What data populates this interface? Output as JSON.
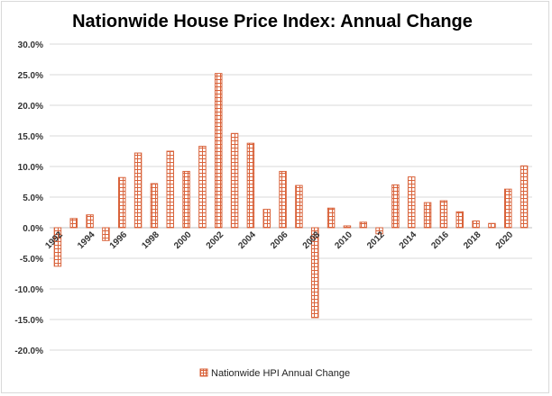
{
  "chart_data": {
    "type": "bar",
    "title": "Nationwide House Price Index: Annual Change",
    "xlabel": "",
    "ylabel": "",
    "ylim": [
      -20,
      30
    ],
    "yticks": [
      "30.0%",
      "25.0%",
      "20.0%",
      "15.0%",
      "10.0%",
      "5.0%",
      "0.0%",
      "-5.0%",
      "-10.0%",
      "-15.0%",
      "-20.0%"
    ],
    "ytick_values": [
      30,
      25,
      20,
      15,
      10,
      5,
      0,
      -5,
      -10,
      -15,
      -20
    ],
    "categories": [
      "1992",
      "1993",
      "1994",
      "1995",
      "1996",
      "1997",
      "1998",
      "1999",
      "2000",
      "2001",
      "2002",
      "2003",
      "2004",
      "2005",
      "2006",
      "2007",
      "2008",
      "2009",
      "2010",
      "2011",
      "2012",
      "2013",
      "2014",
      "2015",
      "2016",
      "2017",
      "2018",
      "2019",
      "2020",
      "2021"
    ],
    "xtick_labels": [
      "1992",
      "",
      "1994",
      "",
      "1996",
      "",
      "1998",
      "",
      "2000",
      "",
      "2002",
      "",
      "2004",
      "",
      "2006",
      "",
      "2008",
      "",
      "2010",
      "",
      "2012",
      "",
      "2014",
      "",
      "2016",
      "",
      "2018",
      "",
      "2020",
      ""
    ],
    "series": [
      {
        "name": "Nationwide HPI Annual Change",
        "values": [
          -6.3,
          1.5,
          2.1,
          -2.1,
          8.2,
          12.2,
          7.2,
          12.5,
          9.2,
          13.3,
          25.2,
          15.4,
          13.8,
          3.0,
          9.2,
          6.9,
          -14.7,
          3.2,
          0.3,
          0.9,
          -1.0,
          7.0,
          8.3,
          4.1,
          4.4,
          2.6,
          1.1,
          0.7,
          6.3,
          10.1
        ]
      }
    ],
    "colors": {
      "bar": "#d9633b",
      "grid": "#d9d9d9",
      "axis": "#bfbfbf"
    },
    "grid": true,
    "legend": "bottom"
  }
}
